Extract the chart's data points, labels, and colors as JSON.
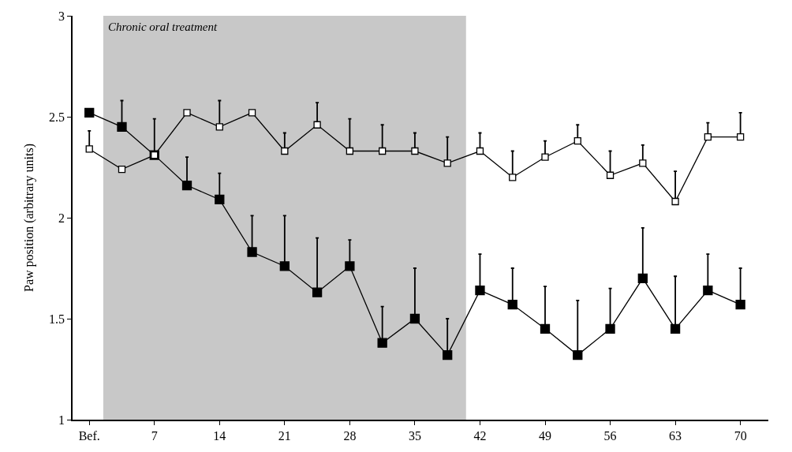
{
  "chart_data": {
    "type": "line",
    "ylabel": "Paw position (arbitrary units)",
    "x": [
      0,
      3.5,
      7,
      10.5,
      14,
      17.5,
      21,
      24.5,
      28,
      31.5,
      35,
      38.5,
      42,
      45.5,
      49,
      52.5,
      56,
      59.5,
      63,
      66.5,
      70
    ],
    "xlim": [
      -1.8,
      73
    ],
    "xticks": [
      {
        "value": 0,
        "label": "Bef."
      },
      7,
      14,
      21,
      28,
      35,
      42,
      49,
      56,
      63,
      70
    ],
    "ylim": [
      1,
      3
    ],
    "yticks": [
      1,
      1.5,
      2,
      2.5,
      3
    ],
    "marker": "square",
    "line_style": "solid",
    "grid": false,
    "series": [
      {
        "color": "#000000",
        "values": [
          2.34,
          2.24,
          2.31,
          2.52,
          2.45,
          2.52,
          2.33,
          2.46,
          2.33,
          2.33,
          2.33,
          2.27,
          2.33,
          2.2,
          2.3,
          2.38,
          2.21,
          2.27,
          2.08,
          2.4,
          2.4
        ],
        "errors": [
          [
            2.34,
            2.43
          ],
          null,
          [
            2.31,
            2.49
          ],
          null,
          [
            2.45,
            2.58
          ],
          null,
          [
            2.33,
            2.42
          ],
          [
            2.46,
            2.57
          ],
          [
            2.33,
            2.49
          ],
          [
            2.33,
            2.46
          ],
          [
            2.33,
            2.42
          ],
          [
            2.27,
            2.4
          ],
          [
            2.33,
            2.42
          ],
          [
            2.2,
            2.33
          ],
          [
            2.3,
            2.38
          ],
          [
            2.38,
            2.46
          ],
          [
            2.21,
            2.33
          ],
          [
            2.27,
            2.36
          ],
          [
            2.08,
            2.23
          ],
          [
            2.4,
            2.47
          ],
          [
            2.4,
            2.52
          ]
        ]
      },
      {
        "color": "#000000",
        "values": [
          2.52,
          2.45,
          2.31,
          2.16,
          2.09,
          1.83,
          1.76,
          1.63,
          1.76,
          1.38,
          1.5,
          1.32,
          1.64,
          1.57,
          1.45,
          1.32,
          1.45,
          1.7,
          1.45,
          1.64,
          1.57
        ],
        "errors": [
          null,
          [
            2.45,
            2.58
          ],
          null,
          [
            2.16,
            2.3
          ],
          [
            2.09,
            2.22
          ],
          [
            1.83,
            2.01
          ],
          [
            1.76,
            2.01
          ],
          [
            1.63,
            1.9
          ],
          [
            1.76,
            1.89
          ],
          [
            1.38,
            1.56
          ],
          [
            1.5,
            1.75
          ],
          [
            1.32,
            1.5
          ],
          [
            1.64,
            1.82
          ],
          [
            1.57,
            1.75
          ],
          [
            1.45,
            1.66
          ],
          [
            1.32,
            1.59
          ],
          [
            1.45,
            1.65
          ],
          [
            1.7,
            1.95
          ],
          [
            1.45,
            1.71
          ],
          [
            1.64,
            1.82
          ],
          [
            1.57,
            1.75
          ]
        ]
      }
    ],
    "bands": [
      {
        "axis": "x",
        "from": 1.5,
        "to": 40.5,
        "label": "Chronic oral treatment",
        "color": "#c8c8c8"
      }
    ]
  }
}
